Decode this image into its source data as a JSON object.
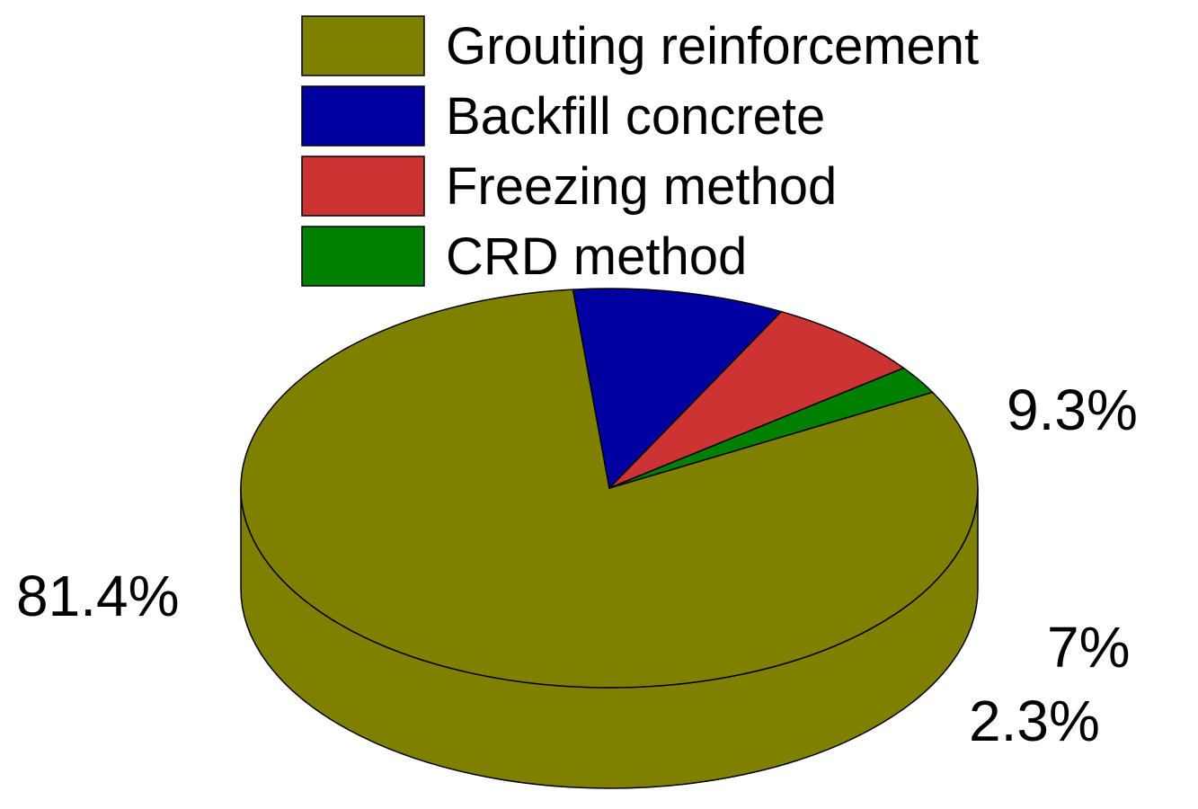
{
  "chart_data": {
    "type": "pie",
    "style": "3d",
    "legend_position": "top",
    "slices": [
      {
        "label": "Grouting reinforcement",
        "value": 81.4,
        "value_label": "81.4%",
        "color": "#808000"
      },
      {
        "label": "Backfill concrete",
        "value": 9.3,
        "value_label": "9.3%",
        "color": "#0000A0"
      },
      {
        "label": "Freezing method",
        "value": 7,
        "value_label": "7%",
        "color": "#CC3333"
      },
      {
        "label": "CRD method",
        "value": 2.3,
        "value_label": "2.3%",
        "color": "#008000"
      }
    ]
  }
}
